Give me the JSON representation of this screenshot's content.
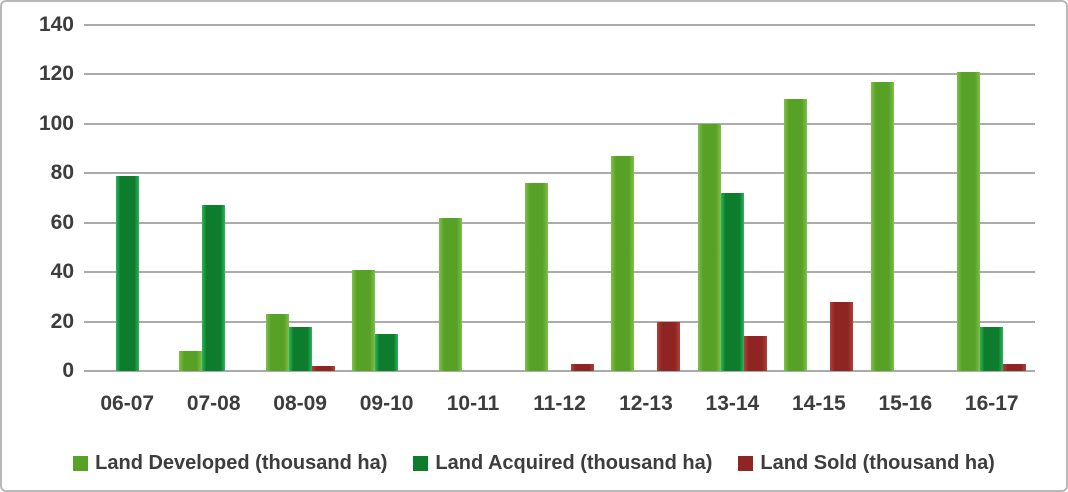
{
  "chart_data": {
    "type": "bar",
    "title": "",
    "xlabel": "",
    "ylabel": "",
    "categories": [
      "06-07",
      "07-08",
      "08-09",
      "09-10",
      "10-11",
      "11-12",
      "12-13",
      "13-14",
      "14-15",
      "15-16",
      "16-17"
    ],
    "series": [
      {
        "name": "Land Developed (thousand ha)",
        "color": "#57a226",
        "values": [
          0,
          8,
          23,
          41,
          62,
          76,
          87,
          100,
          110,
          117,
          121
        ]
      },
      {
        "name": "Land Acquired (thousand ha)",
        "color": "#0d7c2c",
        "values": [
          79,
          67,
          18,
          15,
          0,
          0,
          0,
          72,
          0,
          0,
          18
        ]
      },
      {
        "name": "Land Sold (thousand ha)",
        "color": "#8e2523",
        "values": [
          0,
          0,
          2,
          0,
          0,
          3,
          20,
          14,
          28,
          0,
          3
        ]
      }
    ],
    "ylim": [
      0,
      140
    ],
    "ytick_step": 20,
    "yticks": [
      "0",
      "20",
      "40",
      "60",
      "80",
      "100",
      "120",
      "140"
    ],
    "grid": true,
    "legend_position": "bottom"
  },
  "colors": {
    "background": "#ffffff",
    "border": "#b9b9b9",
    "gridline": "#ababab",
    "text": "#3d3d3d"
  }
}
